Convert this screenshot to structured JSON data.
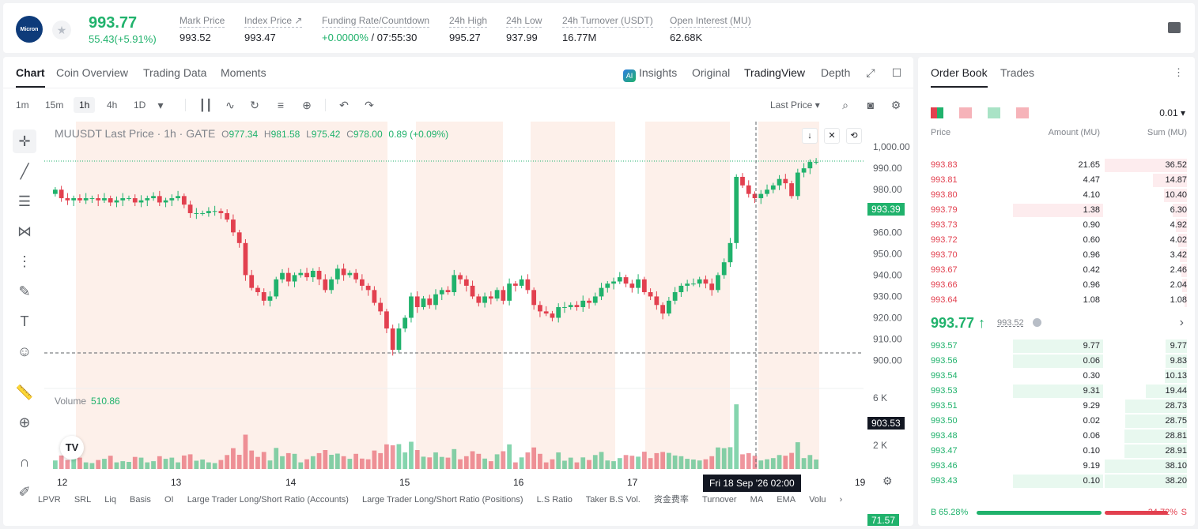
{
  "header": {
    "logo_text": "Micron",
    "last_price": "993.77",
    "change": "55.43(+5.91%)",
    "stats": [
      {
        "label": "Mark Price",
        "value": "993.52"
      },
      {
        "label": "Index Price ↗",
        "value": "993.47"
      },
      {
        "label": "Funding Rate/Countdown",
        "value_green": "+0.0000%",
        "value": " / 07:55:30"
      },
      {
        "label": "24h High",
        "value": "995.27"
      },
      {
        "label": "24h Low",
        "value": "937.99"
      },
      {
        "label": "24h Turnover (USDT)",
        "value": "16.77M"
      },
      {
        "label": "Open Interest (MU)",
        "value": "62.68K"
      }
    ]
  },
  "chart_tabs": {
    "left": [
      "Chart",
      "Coin Overview",
      "Trading Data",
      "Moments"
    ],
    "right": [
      "Insights",
      "Original",
      "TradingView",
      "Depth"
    ],
    "active_left": "Chart",
    "active_right": "TradingView"
  },
  "toolbar": {
    "timeframes": [
      "1m",
      "15m",
      "1h",
      "4h",
      "1D"
    ],
    "active_timeframe": "1h",
    "price_type": "Last Price ▾"
  },
  "legend": {
    "symbol": "MUUSDT Last Price · 1h · GATE",
    "o_label": "O",
    "o": "977.34",
    "h_label": "H",
    "h": "981.58",
    "l_label": "L",
    "l": "975.42",
    "c_label": "C",
    "c": "978.00",
    "chg": "0.89 (+0.09%)",
    "volume_label": "Volume",
    "volume_value": "510.86"
  },
  "price_tags": {
    "last": "993.39",
    "crosshair": "903.53",
    "volume_last": "71.57",
    "crosshair_date": "Fri 18 Sep '26   02:00"
  },
  "indicators": [
    "LPVR",
    "SRL",
    "Liq",
    "Basis",
    "OI",
    "Large Trader Long/Short Ratio (Accounts)",
    "Large Trader Long/Short Ratio (Positions)",
    "L.S Ratio",
    "Taker B.S Vol.",
    "资金费率",
    "Turnover",
    "MA",
    "EMA",
    "Volu"
  ],
  "chart_data": {
    "type": "candlestick",
    "y_ticks": [
      "1,000.00",
      "990.00",
      "980.00",
      "970.00",
      "960.00",
      "950.00",
      "940.00",
      "930.00",
      "920.00",
      "910.00",
      "900.00"
    ],
    "ylim": [
      898,
      1003
    ],
    "x_ticks": [
      "12",
      "13",
      "14",
      "15",
      "16",
      "17",
      "19"
    ],
    "vol_ticks": [
      "6 K",
      "4 K",
      "2 K"
    ],
    "series": [
      {
        "name": "MUUSDT",
        "close": [
          980,
          976,
          975,
          976,
          975,
          976,
          976,
          975,
          976,
          974,
          975,
          976,
          976,
          974,
          975,
          976,
          977,
          974,
          975,
          976,
          977,
          973,
          969,
          969,
          969,
          970,
          970,
          969,
          966,
          960,
          955,
          940,
          934,
          932,
          928,
          930,
          938,
          941,
          937,
          940,
          941,
          939,
          942,
          938,
          933,
          938,
          943,
          940,
          941,
          938,
          935,
          933,
          927,
          923,
          915,
          905,
          915,
          920,
          930,
          925,
          929,
          926,
          931,
          933,
          932,
          940,
          938,
          935,
          930,
          927,
          930,
          929,
          933,
          928,
          936,
          935,
          938,
          933,
          926,
          923,
          922,
          920,
          925,
          925,
          926,
          925,
          928,
          927,
          930,
          934,
          936,
          937,
          939,
          936,
          934,
          938,
          932,
          930,
          926,
          922,
          928,
          932,
          935,
          936,
          936,
          938,
          936,
          933,
          940,
          946,
          955,
          986,
          982,
          978,
          976,
          978,
          980,
          982,
          985,
          983,
          977,
          988,
          990,
          993,
          993
        ]
      }
    ]
  },
  "order_book": {
    "tabs": [
      "Order Book",
      "Trades"
    ],
    "tick": "0.01 ▾",
    "headers": [
      "Price",
      "Amount (MU)",
      "Sum (MU)"
    ],
    "asks": [
      {
        "price": "993.83",
        "amount": "21.65",
        "sum": "36.52",
        "sumr": 1.0,
        "amtr": 0
      },
      {
        "price": "993.81",
        "amount": "4.47",
        "sum": "14.87",
        "sumr": 0.41,
        "amtr": 0
      },
      {
        "price": "993.80",
        "amount": "4.10",
        "sum": "10.40",
        "sumr": 0.28,
        "amtr": 0
      },
      {
        "price": "993.79",
        "amount": "1.38",
        "sum": "6.30",
        "sumr": 0.17,
        "amtr": 0.5
      },
      {
        "price": "993.73",
        "amount": "0.90",
        "sum": "4.92",
        "sumr": 0.13,
        "amtr": 0
      },
      {
        "price": "993.72",
        "amount": "0.60",
        "sum": "4.02",
        "sumr": 0.11,
        "amtr": 0
      },
      {
        "price": "993.70",
        "amount": "0.96",
        "sum": "3.42",
        "sumr": 0.09,
        "amtr": 0
      },
      {
        "price": "993.67",
        "amount": "0.42",
        "sum": "2.46",
        "sumr": 0.07,
        "amtr": 0
      },
      {
        "price": "993.66",
        "amount": "0.96",
        "sum": "2.04",
        "sumr": 0.06,
        "amtr": 0
      },
      {
        "price": "993.64",
        "amount": "1.08",
        "sum": "1.08",
        "sumr": 0.03,
        "amtr": 0
      }
    ],
    "mid_price": "993.77 ↑",
    "mid_mark": "993.52",
    "bids": [
      {
        "price": "993.57",
        "amount": "9.77",
        "sum": "9.77",
        "sumr": 0.26,
        "amtr": 0.5
      },
      {
        "price": "993.56",
        "amount": "0.06",
        "sum": "9.83",
        "sumr": 0.26,
        "amtr": 0.5
      },
      {
        "price": "993.54",
        "amount": "0.30",
        "sum": "10.13",
        "sumr": 0.27,
        "amtr": 0
      },
      {
        "price": "993.53",
        "amount": "9.31",
        "sum": "19.44",
        "sumr": 0.5,
        "amtr": 0.5
      },
      {
        "price": "993.51",
        "amount": "9.29",
        "sum": "28.73",
        "sumr": 0.75,
        "amtr": 0
      },
      {
        "price": "993.50",
        "amount": "0.02",
        "sum": "28.75",
        "sumr": 0.75,
        "amtr": 0
      },
      {
        "price": "993.48",
        "amount": "0.06",
        "sum": "28.81",
        "sumr": 0.76,
        "amtr": 0
      },
      {
        "price": "993.47",
        "amount": "0.10",
        "sum": "28.91",
        "sumr": 0.76,
        "amtr": 0
      },
      {
        "price": "993.46",
        "amount": "9.19",
        "sum": "38.10",
        "sumr": 1.0,
        "amtr": 0
      },
      {
        "price": "993.43",
        "amount": "0.10",
        "sum": "38.20",
        "sumr": 1.0,
        "amtr": 0.5
      }
    ],
    "buy_ratio": "65.28%",
    "sell_ratio": "34.72%",
    "buy_label": "B",
    "sell_label": "S"
  },
  "colors": {
    "up": "#20b26c",
    "down": "#e2404f",
    "session": "#fdf0ea"
  }
}
